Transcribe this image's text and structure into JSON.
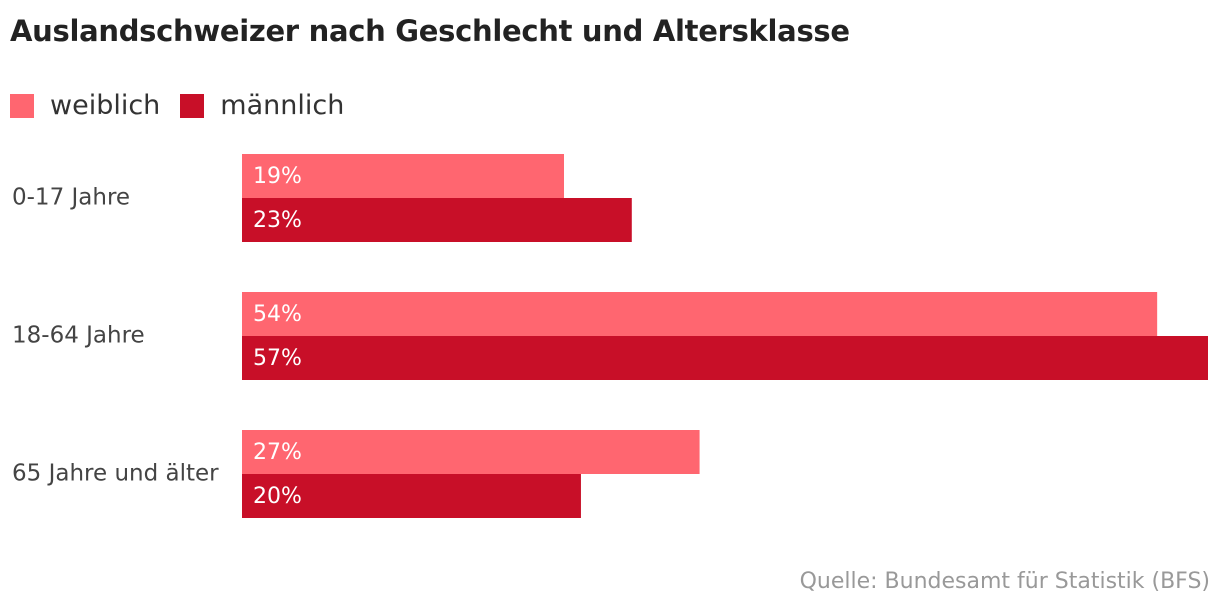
{
  "title": "Auslandschweizer nach Geschlecht und Altersklasse",
  "source": "Quelle: Bundesamt für Statistik (BFS)",
  "colors": {
    "weiblich": "#ff6670",
    "maennlich": "#c80f28"
  },
  "chart_data": {
    "type": "bar",
    "orientation": "horizontal",
    "title": "Auslandschweizer nach Geschlecht und Altersklasse",
    "categories": [
      "0-17 Jahre",
      "18-64 Jahre",
      "65 Jahre und älter"
    ],
    "series": [
      {
        "name": "weiblich",
        "values": [
          19,
          54,
          27
        ],
        "labels": [
          "19%",
          "54%",
          "27%"
        ]
      },
      {
        "name": "männlich",
        "values": [
          23,
          57,
          20
        ],
        "labels": [
          "23%",
          "57%",
          "20%"
        ]
      }
    ],
    "unit": "%",
    "xlim": [
      0,
      57
    ],
    "grid": false,
    "legend": "top-left"
  }
}
